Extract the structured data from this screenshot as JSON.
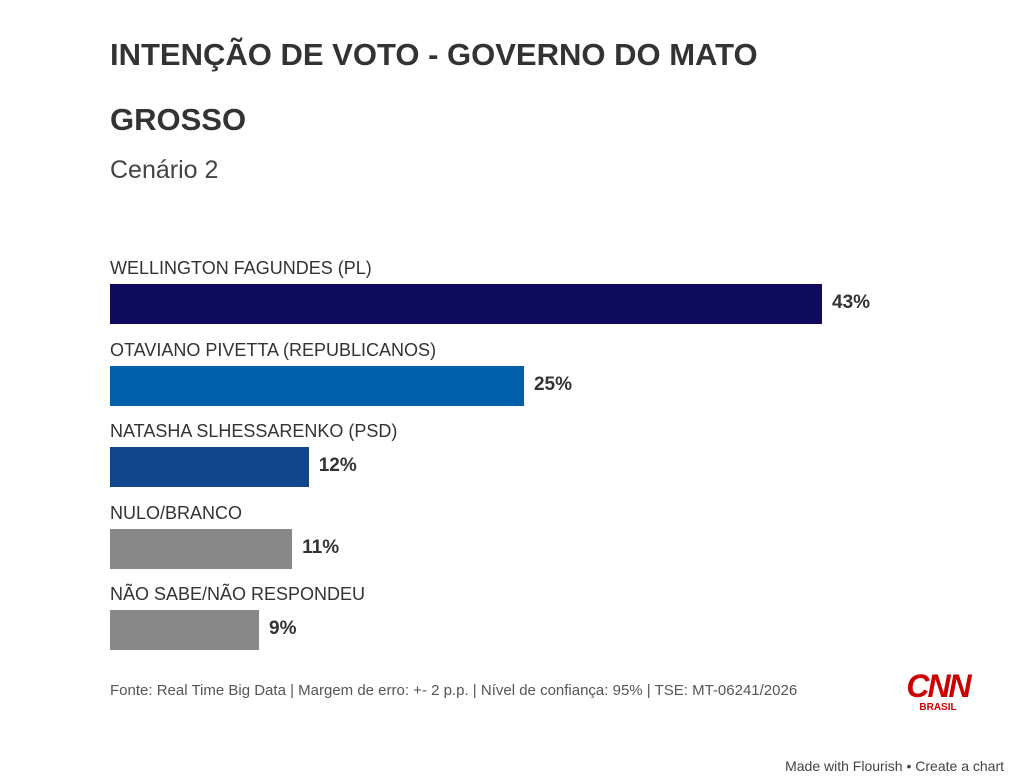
{
  "chart_data": {
    "type": "bar",
    "orientation": "horizontal",
    "title": "INTENÇÃO DE VOTO - GOVERNO DO MATO GROSSO",
    "subtitle": "Cenário 2",
    "categories": [
      "WELLINGTON FAGUNDES (PL)",
      "OTAVIANO PIVETTA (REPUBLICANOS)",
      "NATASHA SLHESSARENKO (PSD)",
      "NULO/BRANCO",
      "NÃO SABE/NÃO RESPONDEU"
    ],
    "values": [
      43,
      25,
      12,
      11,
      9
    ],
    "value_labels": [
      "43%",
      "25%",
      "12%",
      "11%",
      "9%"
    ],
    "colors": [
      "#0f0c5e",
      "#0060aa",
      "#13458a",
      "#888888",
      "#888888"
    ],
    "source": "Fonte: Real Time Big Data | Margem de erro: +- 2 p.p. | Nível de confiança: 95% | TSE: MT-06241/2026",
    "logo": "CNN",
    "logo_subtitle": "BRASIL",
    "footer": [
      "Made with Flourish",
      "Create a chart"
    ]
  }
}
